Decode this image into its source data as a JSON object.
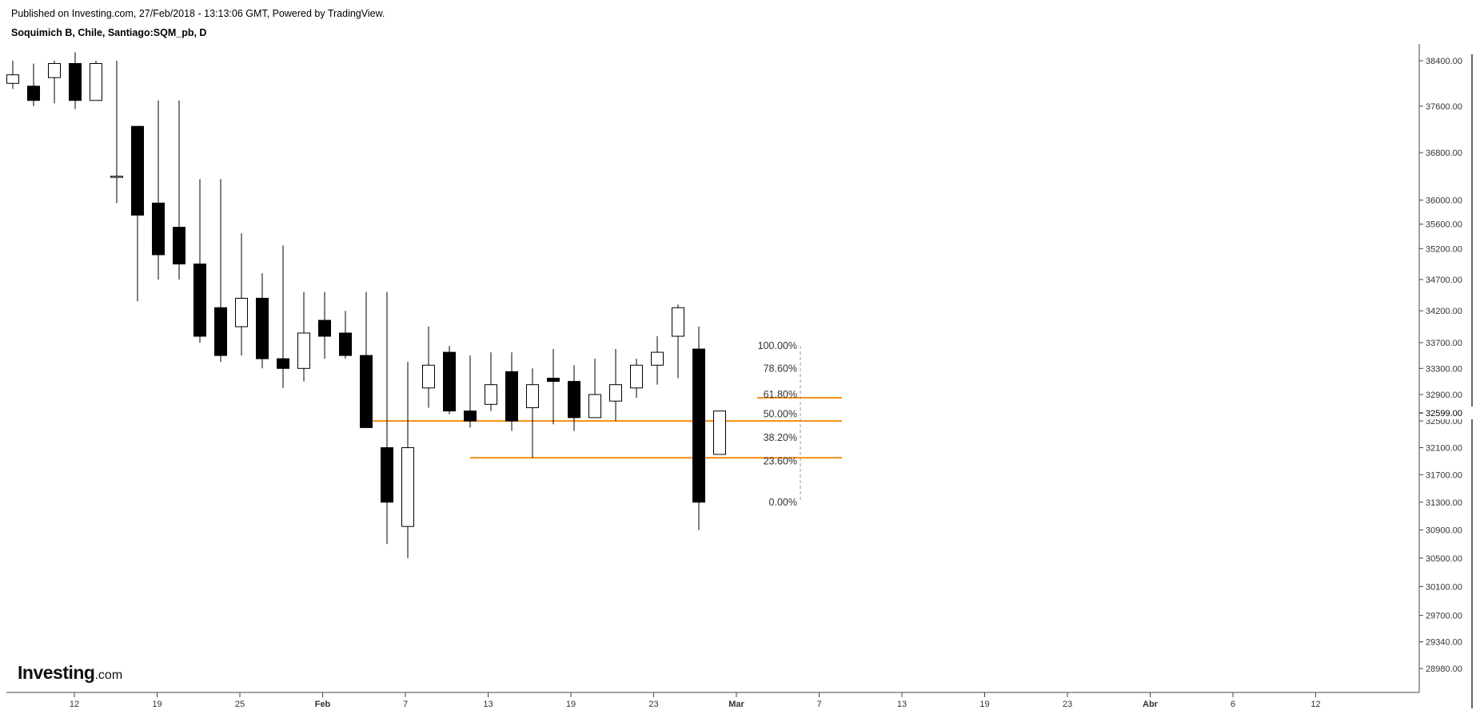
{
  "header": {
    "published": "Published on Investing.com, 27/Feb/2018 - 13:13:06 GMT, Powered by TradingView.",
    "symbol": "Soquimich B, Chile, Santiago:SQM_pb, D"
  },
  "logo": {
    "main": "Investing",
    "suffix": ".com"
  },
  "chart_data": {
    "type": "candlestick",
    "scale": "log",
    "up_color": "#ffffff",
    "down_color": "#000000",
    "fib_color": "#f7941d",
    "y_ticks": [
      38400,
      37600,
      36800,
      36000,
      35600,
      35200,
      34700,
      34200,
      33700,
      33300,
      32900,
      32500,
      32100,
      31700,
      31300,
      30900,
      30500,
      30100,
      29700,
      29340,
      28980
    ],
    "y_tick_labels": [
      "38400.00",
      "37600.00",
      "36800.00",
      "36000.00",
      "35600.00",
      "35200.00",
      "34700.00",
      "34200.00",
      "33700.00",
      "33300.00",
      "32900.00",
      "32500.00",
      "32100.00",
      "31700.00",
      "31300.00",
      "30900.00",
      "30500.00",
      "30100.00",
      "29700.00",
      "29340.00",
      "28980.00"
    ],
    "last_price_label": "32599.00",
    "x_ticks": [
      {
        "label": "12",
        "bold": false
      },
      {
        "label": "19",
        "bold": false
      },
      {
        "label": "25",
        "bold": false
      },
      {
        "label": "Feb",
        "bold": true
      },
      {
        "label": "7",
        "bold": false
      },
      {
        "label": "13",
        "bold": false
      },
      {
        "label": "19",
        "bold": false
      },
      {
        "label": "23",
        "bold": false
      },
      {
        "label": "Mar",
        "bold": true
      },
      {
        "label": "7",
        "bold": false
      },
      {
        "label": "13",
        "bold": false
      },
      {
        "label": "19",
        "bold": false
      },
      {
        "label": "23",
        "bold": false
      },
      {
        "label": "Abr",
        "bold": true
      },
      {
        "label": "6",
        "bold": false
      },
      {
        "label": "12",
        "bold": false
      }
    ],
    "candles": [
      {
        "o": 38000,
        "h": 38400,
        "l": 37900,
        "c": 38150
      },
      {
        "o": 37950,
        "h": 38350,
        "l": 37600,
        "c": 37700
      },
      {
        "o": 38100,
        "h": 38400,
        "l": 37650,
        "c": 38350
      },
      {
        "o": 38350,
        "h": 38550,
        "l": 37550,
        "c": 37700
      },
      {
        "o": 37700,
        "h": 38400,
        "l": 37700,
        "c": 38350
      },
      {
        "o": 36400,
        "h": 38400,
        "l": 35950,
        "c": 36400
      },
      {
        "o": 37250,
        "h": 37250,
        "l": 34350,
        "c": 35750
      },
      {
        "o": 35950,
        "h": 37700,
        "l": 34700,
        "c": 35100
      },
      {
        "o": 35550,
        "h": 37700,
        "l": 34700,
        "c": 34950
      },
      {
        "o": 34950,
        "h": 36350,
        "l": 33700,
        "c": 33800
      },
      {
        "o": 34250,
        "h": 36350,
        "l": 33400,
        "c": 33500
      },
      {
        "o": 33950,
        "h": 35450,
        "l": 33500,
        "c": 34400
      },
      {
        "o": 34400,
        "h": 34800,
        "l": 33300,
        "c": 33450
      },
      {
        "o": 33450,
        "h": 35250,
        "l": 33000,
        "c": 33300
      },
      {
        "o": 33300,
        "h": 34500,
        "l": 33100,
        "c": 33850
      },
      {
        "o": 34050,
        "h": 34500,
        "l": 33450,
        "c": 33800
      },
      {
        "o": 33850,
        "h": 34200,
        "l": 33450,
        "c": 33500
      },
      {
        "o": 33500,
        "h": 34500,
        "l": 32400,
        "c": 32400
      },
      {
        "o": 32100,
        "h": 34500,
        "l": 30700,
        "c": 31300
      },
      {
        "o": 30950,
        "h": 33400,
        "l": 30500,
        "c": 32100
      },
      {
        "o": 33000,
        "h": 33950,
        "l": 32700,
        "c": 33350
      },
      {
        "o": 33550,
        "h": 33650,
        "l": 32600,
        "c": 32650
      },
      {
        "o": 32650,
        "h": 33500,
        "l": 32400,
        "c": 32500
      },
      {
        "o": 32750,
        "h": 33550,
        "l": 32650,
        "c": 33050
      },
      {
        "o": 33250,
        "h": 33550,
        "l": 32350,
        "c": 32500
      },
      {
        "o": 32700,
        "h": 33300,
        "l": 31950,
        "c": 33050
      },
      {
        "o": 33150,
        "h": 33600,
        "l": 32450,
        "c": 33100
      },
      {
        "o": 33100,
        "h": 33350,
        "l": 32350,
        "c": 32550
      },
      {
        "o": 32550,
        "h": 33450,
        "l": 32550,
        "c": 32900
      },
      {
        "o": 32800,
        "h": 33600,
        "l": 32500,
        "c": 33050
      },
      {
        "o": 33000,
        "h": 33450,
        "l": 32850,
        "c": 33350
      },
      {
        "o": 33350,
        "h": 33800,
        "l": 33050,
        "c": 33550
      },
      {
        "o": 33800,
        "h": 34300,
        "l": 33150,
        "c": 34250
      },
      {
        "o": 33600,
        "h": 33950,
        "l": 30900,
        "c": 31300
      },
      {
        "o": 32000,
        "h": 32650,
        "l": 32000,
        "c": 32650
      }
    ],
    "fib_lines": [
      {
        "price": 32850,
        "x_from_candle": 35.8,
        "x_to_candle": 37.9
      },
      {
        "price": 32500,
        "x_from_candle": 16.8,
        "x_to_candle": 37.9
      },
      {
        "price": 31950,
        "x_from_candle": 22.0,
        "x_to_candle": 37.9
      }
    ],
    "fib_levels": [
      {
        "label": "100.00%",
        "price": 33650
      },
      {
        "label": "78.60%",
        "price": 33300
      },
      {
        "label": "61.80%",
        "price": 32900
      },
      {
        "label": "50.00%",
        "price": 32600
      },
      {
        "label": "38.20%",
        "price": 32250
      },
      {
        "label": "23.60%",
        "price": 31900
      },
      {
        "label": "0.00%",
        "price": 31300
      }
    ],
    "ylim": [
      28700,
      38600
    ]
  }
}
